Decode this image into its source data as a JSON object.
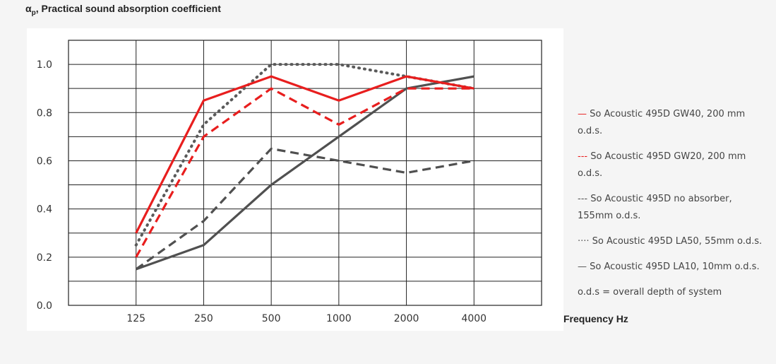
{
  "y_axis_title": {
    "symbol": "α",
    "subscript": "p",
    "text": "Practical sound absorption coefficient"
  },
  "x_axis_title": "Frequency Hz",
  "legend": [
    {
      "marker": "—",
      "text": "So Acoustic 495D GW40, 200 mm o.d.s."
    },
    {
      "marker": "---",
      "text": "So Acoustic 495D GW20, 200 mm o.d.s."
    },
    {
      "marker": "---",
      "text": "So Acoustic 495D no absorber, 155mm o.d.s."
    },
    {
      "marker": "····",
      "text": "So Acoustic 495D LA50, 55mm o.d.s."
    },
    {
      "marker": "—",
      "text": "So Acoustic 495D LA10, 10mm o.d.s."
    },
    {
      "marker": "",
      "text": "o.d.s = overall depth of system"
    }
  ],
  "colors": {
    "red": "#e81e1e",
    "dark_gray": "#505050",
    "gray": "#5a5a5a",
    "grid": "#222222"
  },
  "chart_data": {
    "type": "line",
    "categories": [
      "125",
      "250",
      "500",
      "1000",
      "2000",
      "4000"
    ],
    "ylim": [
      0,
      1.0
    ],
    "yticks": [
      "1.0",
      "0.8",
      "0.6",
      "0.4",
      "0.2",
      "0.0"
    ],
    "grid": true,
    "legend_position": "right",
    "series": [
      {
        "name": "So Acoustic 495D GW40, 200 mm o.d.s.",
        "style": "solid",
        "color": "#e81e1e",
        "values": [
          0.3,
          0.85,
          0.95,
          0.85,
          0.95,
          0.9
        ]
      },
      {
        "name": "So Acoustic 495D GW20, 200 mm o.d.s.",
        "style": "dashed",
        "color": "#e81e1e",
        "values": [
          0.2,
          0.7,
          0.9,
          0.75,
          0.9,
          0.9
        ]
      },
      {
        "name": "So Acoustic 495D no absorber, 155mm o.d.s.",
        "style": "dashed",
        "color": "#505050",
        "values": [
          0.15,
          0.35,
          0.65,
          0.6,
          0.55,
          0.6
        ]
      },
      {
        "name": "So Acoustic 495D LA50, 55mm o.d.s.",
        "style": "dotted",
        "color": "#5a5a5a",
        "values": [
          0.25,
          0.75,
          1.0,
          1.0,
          0.95,
          0.9
        ]
      },
      {
        "name": "So Acoustic 495D LA10, 10mm o.d.s.",
        "style": "solid",
        "color": "#505050",
        "values": [
          0.15,
          0.25,
          0.5,
          0.7,
          0.9,
          0.95
        ]
      }
    ]
  }
}
